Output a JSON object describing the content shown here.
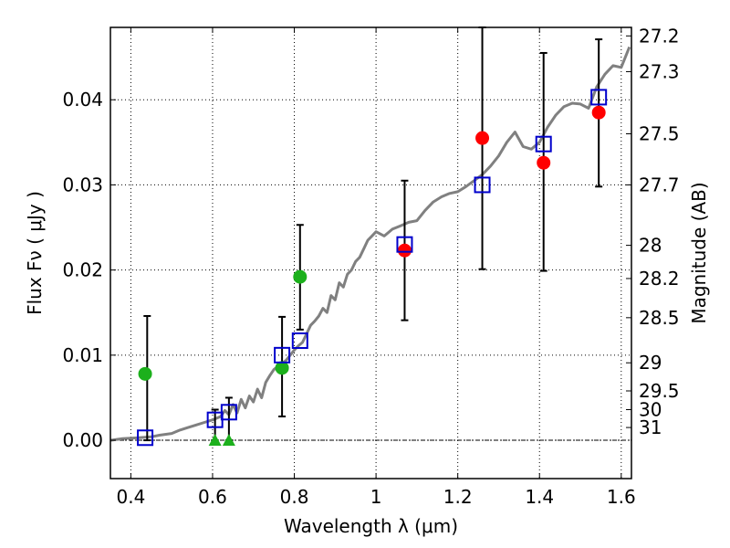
{
  "chart_data": {
    "type": "scatter",
    "xlabel": "Wavelength  λ (μm)",
    "ylabel": "Flux  Fν  ( μJy )",
    "y2label": "Magnitude (AB)",
    "xlim": [
      0.35,
      1.625
    ],
    "ylim": [
      -0.0045,
      0.0485
    ],
    "grid": true,
    "x_ticks": [
      {
        "value": 0.4,
        "label": "0.4"
      },
      {
        "value": 0.6,
        "label": "0.6"
      },
      {
        "value": 0.8,
        "label": "0.8"
      },
      {
        "value": 1.0,
        "label": "1"
      },
      {
        "value": 1.2,
        "label": "1.2"
      },
      {
        "value": 1.4,
        "label": "1.4"
      },
      {
        "value": 1.6,
        "label": "1.6"
      }
    ],
    "y_ticks": [
      {
        "value": 0.0,
        "label": "0.00"
      },
      {
        "value": 0.01,
        "label": "0.01"
      },
      {
        "value": 0.02,
        "label": "0.02"
      },
      {
        "value": 0.03,
        "label": "0.03"
      },
      {
        "value": 0.04,
        "label": "0.04"
      }
    ],
    "y2_ticks": [
      {
        "label": "27.2",
        "flux": 0.0475
      },
      {
        "label": "27.3",
        "flux": 0.0433
      },
      {
        "label": "27.5",
        "flux": 0.036
      },
      {
        "label": "27.7",
        "flux": 0.03
      },
      {
        "label": "28",
        "flux": 0.0229
      },
      {
        "label": "28.2",
        "flux": 0.019
      },
      {
        "label": "28.5",
        "flux": 0.0144
      },
      {
        "label": "29",
        "flux": 0.0091
      },
      {
        "label": "29.5",
        "flux": 0.0058
      },
      {
        "label": "30",
        "flux": 0.0036
      },
      {
        "label": "31",
        "flux": 0.0015
      }
    ],
    "model_sed": {
      "color": "#808080",
      "points": [
        [
          0.35,
          0.0
        ],
        [
          0.38,
          0.0002
        ],
        [
          0.42,
          0.0003
        ],
        [
          0.45,
          0.0004
        ],
        [
          0.47,
          0.0006
        ],
        [
          0.5,
          0.0008
        ],
        [
          0.52,
          0.0012
        ],
        [
          0.54,
          0.0015
        ],
        [
          0.56,
          0.0018
        ],
        [
          0.58,
          0.0021
        ],
        [
          0.6,
          0.0024
        ],
        [
          0.62,
          0.0028
        ],
        [
          0.63,
          0.0035
        ],
        [
          0.64,
          0.003
        ],
        [
          0.65,
          0.0042
        ],
        [
          0.66,
          0.0032
        ],
        [
          0.67,
          0.0048
        ],
        [
          0.68,
          0.0038
        ],
        [
          0.69,
          0.0052
        ],
        [
          0.7,
          0.0045
        ],
        [
          0.71,
          0.006
        ],
        [
          0.72,
          0.005
        ],
        [
          0.73,
          0.0068
        ],
        [
          0.74,
          0.0076
        ],
        [
          0.75,
          0.0083
        ],
        [
          0.76,
          0.0087
        ],
        [
          0.77,
          0.009
        ],
        [
          0.78,
          0.0094
        ],
        [
          0.79,
          0.01
        ],
        [
          0.8,
          0.0106
        ],
        [
          0.81,
          0.0111
        ],
        [
          0.82,
          0.0115
        ],
        [
          0.83,
          0.0125
        ],
        [
          0.84,
          0.0135
        ],
        [
          0.85,
          0.014
        ],
        [
          0.86,
          0.0146
        ],
        [
          0.87,
          0.0155
        ],
        [
          0.88,
          0.015
        ],
        [
          0.89,
          0.017
        ],
        [
          0.9,
          0.0165
        ],
        [
          0.91,
          0.0185
        ],
        [
          0.92,
          0.018
        ],
        [
          0.93,
          0.0195
        ],
        [
          0.94,
          0.02
        ],
        [
          0.95,
          0.021
        ],
        [
          0.96,
          0.0215
        ],
        [
          0.97,
          0.0225
        ],
        [
          0.98,
          0.0235
        ],
        [
          0.99,
          0.024
        ],
        [
          1.0,
          0.0245
        ],
        [
          1.02,
          0.024
        ],
        [
          1.04,
          0.0248
        ],
        [
          1.06,
          0.0252
        ],
        [
          1.08,
          0.0256
        ],
        [
          1.1,
          0.0258
        ],
        [
          1.12,
          0.027
        ],
        [
          1.14,
          0.028
        ],
        [
          1.16,
          0.0286
        ],
        [
          1.18,
          0.029
        ],
        [
          1.2,
          0.0292
        ],
        [
          1.22,
          0.0298
        ],
        [
          1.24,
          0.0305
        ],
        [
          1.26,
          0.0312
        ],
        [
          1.28,
          0.0322
        ],
        [
          1.3,
          0.0334
        ],
        [
          1.32,
          0.035
        ],
        [
          1.34,
          0.0362
        ],
        [
          1.36,
          0.0345
        ],
        [
          1.38,
          0.0342
        ],
        [
          1.4,
          0.035
        ],
        [
          1.42,
          0.0368
        ],
        [
          1.44,
          0.0382
        ],
        [
          1.46,
          0.0392
        ],
        [
          1.48,
          0.0396
        ],
        [
          1.5,
          0.0395
        ],
        [
          1.52,
          0.039
        ],
        [
          1.54,
          0.0415
        ],
        [
          1.56,
          0.043
        ],
        [
          1.58,
          0.044
        ],
        [
          1.6,
          0.0438
        ],
        [
          1.62,
          0.0462
        ]
      ]
    },
    "series": [
      {
        "marker": "circle",
        "color": "#1cb01c",
        "points": [
          {
            "x": 0.435,
            "y": 0.0078
          },
          {
            "x": 0.77,
            "y": 0.0085
          },
          {
            "x": 0.814,
            "y": 0.0192
          }
        ]
      },
      {
        "marker": "triangle",
        "color": "#1cb01c",
        "points": [
          {
            "x": 0.606,
            "y": 0.0
          },
          {
            "x": 0.64,
            "y": 0.0
          }
        ]
      },
      {
        "marker": "circle",
        "color": "#ff0000",
        "points": [
          {
            "x": 1.07,
            "y": 0.0223
          },
          {
            "x": 1.26,
            "y": 0.0355
          },
          {
            "x": 1.41,
            "y": 0.0326
          },
          {
            "x": 1.545,
            "y": 0.0385
          }
        ]
      },
      {
        "marker": "square-open",
        "color": "#0000cc",
        "points": [
          {
            "x": 0.435,
            "y": 0.0003
          },
          {
            "x": 0.606,
            "y": 0.0024
          },
          {
            "x": 0.64,
            "y": 0.0033
          },
          {
            "x": 0.77,
            "y": 0.01
          },
          {
            "x": 0.814,
            "y": 0.0117
          },
          {
            "x": 1.07,
            "y": 0.023
          },
          {
            "x": 1.26,
            "y": 0.03
          },
          {
            "x": 1.41,
            "y": 0.0348
          },
          {
            "x": 1.545,
            "y": 0.0403
          }
        ]
      }
    ],
    "error_bars": [
      {
        "x": 0.44,
        "low": 0.0,
        "high": 0.0146
      },
      {
        "x": 0.606,
        "low": 0.0,
        "high": 0.0036
      },
      {
        "x": 0.64,
        "low": 0.0,
        "high": 0.005
      },
      {
        "x": 0.77,
        "low": 0.0028,
        "high": 0.0145
      },
      {
        "x": 0.814,
        "low": 0.013,
        "high": 0.0253
      },
      {
        "x": 1.07,
        "low": 0.0141,
        "high": 0.0305
      },
      {
        "x": 1.26,
        "low": 0.0201,
        "high": 0.0485
      },
      {
        "x": 1.41,
        "low": 0.0199,
        "high": 0.0455
      },
      {
        "x": 1.545,
        "low": 0.0298,
        "high": 0.0471
      }
    ]
  }
}
